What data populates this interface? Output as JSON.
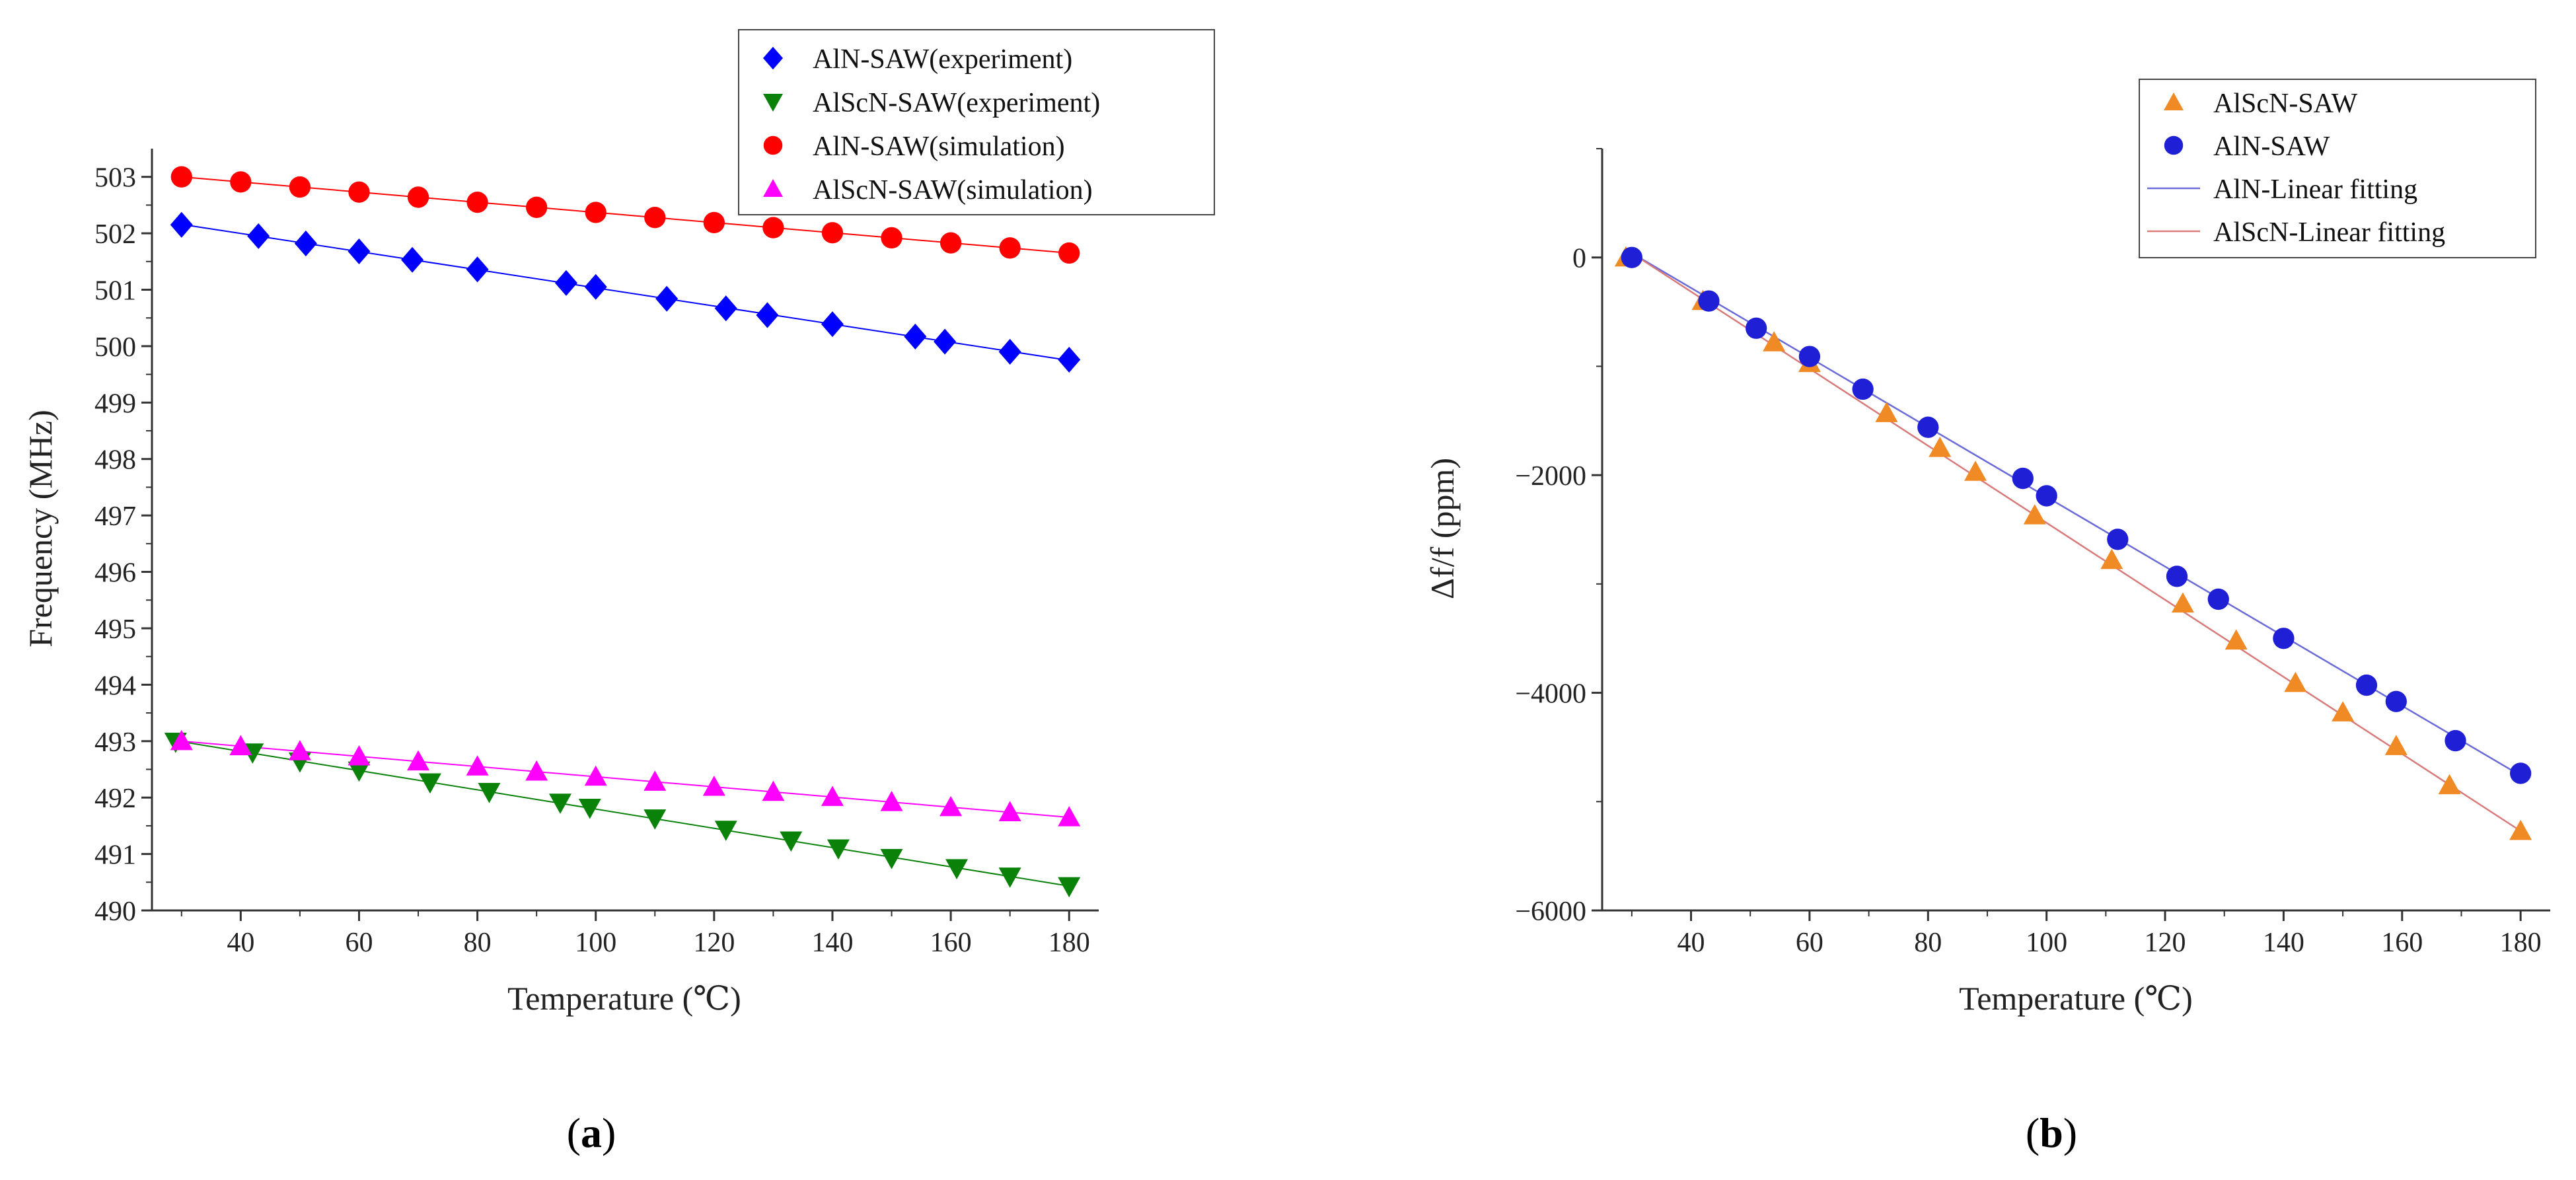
{
  "colors": {
    "blue": "#0000ff",
    "green": "#0a820a",
    "red": "#ff0000",
    "magenta": "#ff00ff",
    "orange": "#f08a24",
    "navy": "#1f1fd6",
    "fit_blue": "#6a6ad8",
    "fit_red": "#d97a7a"
  },
  "chart_data": [
    {
      "type": "scatter",
      "panel_label": "(a)",
      "panel_letter": "a",
      "xlabel": "Temperature (℃)",
      "ylabel": "Frequency (MHz)",
      "xlim": [
        25,
        185
      ],
      "ylim": [
        490,
        503.5
      ],
      "xticks": [
        40,
        60,
        80,
        100,
        120,
        140,
        160,
        180
      ],
      "yticks": [
        490,
        491,
        492,
        493,
        494,
        495,
        496,
        497,
        498,
        499,
        500,
        501,
        502,
        503
      ],
      "legend_position": "top-right",
      "series": [
        {
          "name": "AlN-SAW(experiment)",
          "marker": "diamond",
          "color": "#0000ff",
          "x": [
            30,
            43,
            51,
            60,
            69,
            80,
            95,
            100,
            112,
            122,
            129,
            140,
            154,
            159,
            170,
            180
          ],
          "y": [
            502.15,
            501.95,
            501.82,
            501.68,
            501.53,
            501.36,
            501.12,
            501.05,
            500.84,
            500.67,
            500.55,
            500.39,
            500.17,
            500.08,
            499.9,
            499.76
          ]
        },
        {
          "name": "AlScN-SAW(experiment)",
          "marker": "triangle-down",
          "color": "#0a820a",
          "x": [
            29,
            42,
            50,
            60,
            72,
            82,
            94,
            99,
            110,
            122,
            133,
            141,
            150,
            161,
            170,
            180
          ],
          "y": [
            492.99,
            492.8,
            492.64,
            492.48,
            492.27,
            492.1,
            491.91,
            491.82,
            491.63,
            491.43,
            491.24,
            491.1,
            490.93,
            490.75,
            490.6,
            490.43
          ]
        },
        {
          "name": "AlN-SAW(simulation)",
          "marker": "circle",
          "color": "#ff0000",
          "x": [
            30,
            40,
            50,
            60,
            70,
            80,
            90,
            100,
            110,
            120,
            130,
            140,
            150,
            160,
            170,
            180
          ],
          "y": [
            503.0,
            502.91,
            502.82,
            502.73,
            502.64,
            502.55,
            502.46,
            502.37,
            502.28,
            502.19,
            502.1,
            502.01,
            501.92,
            501.83,
            501.74,
            501.65
          ]
        },
        {
          "name": "AlScN-SAW(simulation)",
          "marker": "triangle-up",
          "color": "#ff00ff",
          "x": [
            30,
            40,
            50,
            60,
            70,
            80,
            90,
            100,
            110,
            120,
            130,
            140,
            150,
            160,
            170,
            180
          ],
          "y": [
            493.0,
            492.91,
            492.82,
            492.73,
            492.64,
            492.55,
            492.46,
            492.37,
            492.28,
            492.19,
            492.1,
            492.01,
            491.92,
            491.83,
            491.74,
            491.65
          ]
        }
      ]
    },
    {
      "type": "scatter",
      "panel_label": "(b)",
      "panel_letter": "b",
      "xlabel": "Temperature (℃)",
      "ylabel": "Δf/f (ppm)",
      "xlim": [
        25,
        185
      ],
      "ylim": [
        -6000,
        1000
      ],
      "xticks": [
        40,
        60,
        80,
        100,
        120,
        140,
        160,
        180
      ],
      "yticks": [
        -6000,
        -4000,
        -2000,
        0
      ],
      "ytick_labels": [
        "−6000",
        "−4000",
        "−2000",
        "0"
      ],
      "legend_position": "top-right",
      "series": [
        {
          "name": "AlScN-SAW",
          "marker": "triangle-up",
          "color": "#f08a24",
          "x": [
            29,
            42,
            54,
            60,
            73,
            82,
            88,
            98,
            111,
            123,
            132,
            142,
            150,
            159,
            168,
            180
          ],
          "y": [
            0,
            -400,
            -780,
            -970,
            -1430,
            -1750,
            -1970,
            -2370,
            -2780,
            -3180,
            -3520,
            -3910,
            -4180,
            -4490,
            -4850,
            -5270
          ]
        },
        {
          "name": "AlN-SAW",
          "marker": "circle",
          "color": "#1f1fd6",
          "x": [
            30,
            43,
            51,
            60,
            69,
            80,
            96,
            100,
            112,
            122,
            129,
            140,
            154,
            159,
            169,
            180
          ],
          "y": [
            0,
            -400,
            -650,
            -910,
            -1210,
            -1560,
            -2030,
            -2190,
            -2590,
            -2930,
            -3140,
            -3500,
            -3930,
            -4080,
            -4440,
            -4740
          ]
        },
        {
          "name": "AlN-Linear fitting",
          "line": true,
          "color": "#6a6ad8",
          "x": [
            30,
            180
          ],
          "y": [
            40,
            -4760
          ]
        },
        {
          "name": "AlScN-Linear fitting",
          "line": true,
          "color": "#d97a7a",
          "x": [
            30,
            180
          ],
          "y": [
            40,
            -5270
          ]
        }
      ]
    }
  ]
}
